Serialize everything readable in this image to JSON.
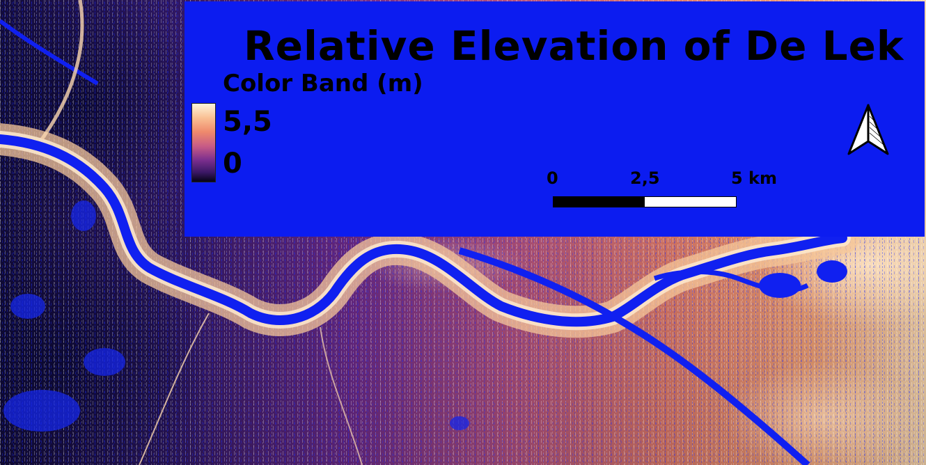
{
  "map": {
    "title": "Relative Elevation of De Lek",
    "legend": {
      "band_title": "Color Band (m)",
      "max_label": "5,5",
      "min_label": "0",
      "ramp_colors": [
        "#fdf5dc",
        "#f9c094",
        "#ef8a6c",
        "#c65a86",
        "#7c2f8e",
        "#3b1865",
        "#050314"
      ]
    },
    "scale_bar": {
      "label_start": "0",
      "label_mid": "2,5",
      "label_end": "5 km"
    },
    "north_arrow": "north-arrow-icon",
    "colors": {
      "panel": "#0c1cf0",
      "water": "#1020f0",
      "text": "#000000"
    }
  }
}
